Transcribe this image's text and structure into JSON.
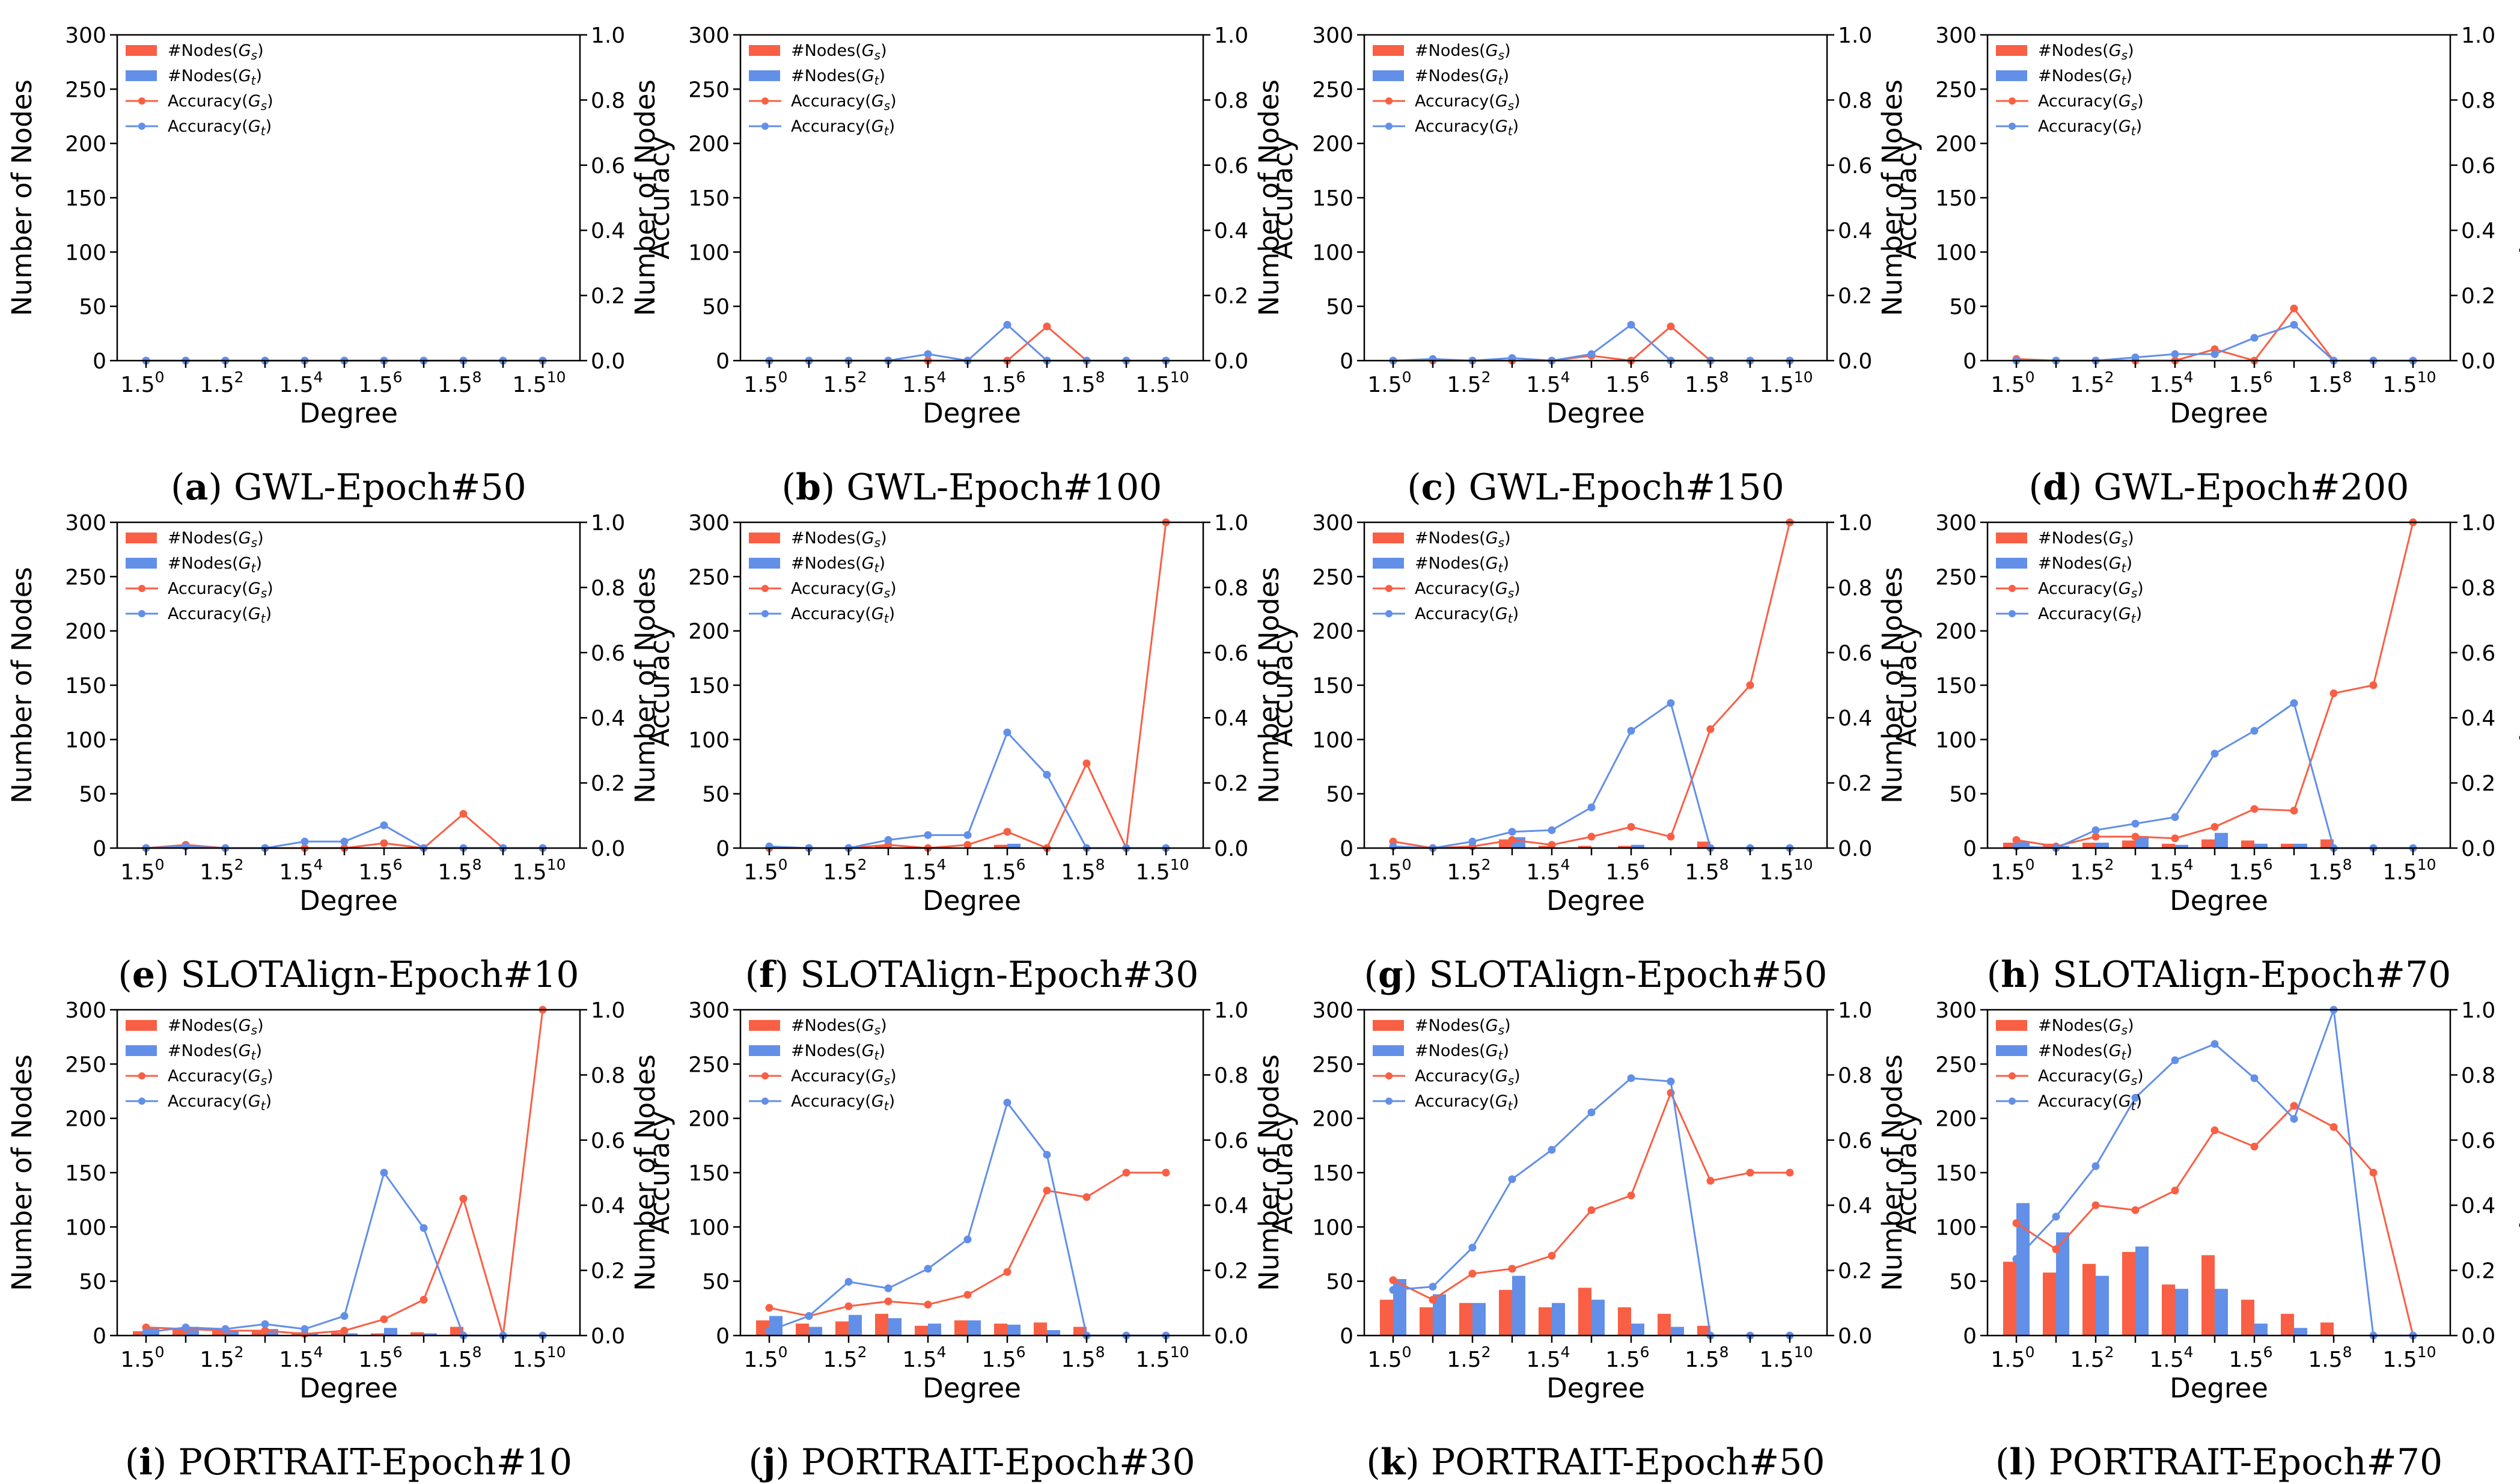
{
  "colors": {
    "source": "#f95f44",
    "target": "#628fe8",
    "axis": "#000000",
    "background": "#ffffff"
  },
  "common": {
    "x_tick_labels": [
      "1.5",
      "0",
      "1.5",
      "2",
      "1.5",
      "4",
      "1.5",
      "6",
      "1.5",
      "8",
      "1.5",
      "10"
    ],
    "x_tick_base": "1.5",
    "x_tick_exponents": [
      "0",
      "2",
      "4",
      "6",
      "8",
      "10"
    ],
    "left_ticks": [
      "0",
      "50",
      "100",
      "150",
      "200",
      "250",
      "300"
    ],
    "right_ticks": [
      "0.0",
      "0.2",
      "0.4",
      "0.6",
      "0.8",
      "1.0"
    ],
    "legend": [
      {
        "prefix": "#Nodes(",
        "var": "G",
        "sub": "s",
        "suffix": ")"
      },
      {
        "prefix": "#Nodes(",
        "var": "G",
        "sub": "t",
        "suffix": ")"
      },
      {
        "prefix": "Accuracy(",
        "var": "G",
        "sub": "s",
        "suffix": ")"
      },
      {
        "prefix": "Accuracy(",
        "var": "G",
        "sub": "t",
        "suffix": ")"
      }
    ]
  },
  "chart_data": [
    {
      "type": "bar+line",
      "id": "a",
      "caption_label": "a",
      "caption_title": "GWL-Epoch#50",
      "xlabel": "Degree",
      "ylabel_left": "Number of Nodes",
      "ylabel_right": "Accuracy",
      "x_exponents": [
        0,
        1,
        2,
        3,
        4,
        5,
        6,
        7,
        8,
        9,
        10
      ],
      "ylim_left": [
        0,
        300
      ],
      "ylim_right": [
        0,
        1.0
      ],
      "nodes_s": [
        0,
        0,
        0,
        0,
        0,
        0,
        0,
        0,
        0,
        0,
        0
      ],
      "nodes_t": [
        0,
        0,
        0,
        0,
        0,
        0,
        0,
        0,
        0,
        0,
        0
      ],
      "acc_s": [
        0,
        0,
        0,
        0,
        0,
        0,
        0,
        0,
        0,
        0,
        0
      ],
      "acc_t": [
        0,
        0,
        0,
        0,
        0,
        0,
        0,
        0,
        0,
        0,
        0
      ]
    },
    {
      "type": "bar+line",
      "id": "b",
      "caption_label": "b",
      "caption_title": "GWL-Epoch#100",
      "xlabel": "Degree",
      "ylabel_left": "Number of Nodes",
      "ylabel_right": "Accuracy",
      "x_exponents": [
        0,
        1,
        2,
        3,
        4,
        5,
        6,
        7,
        8,
        9,
        10
      ],
      "ylim_left": [
        0,
        300
      ],
      "ylim_right": [
        0,
        1.0
      ],
      "nodes_s": [
        0,
        0,
        0,
        0,
        0,
        0,
        0,
        0,
        0,
        0,
        0
      ],
      "nodes_t": [
        0,
        0,
        0,
        0,
        0,
        0,
        0,
        0,
        0,
        0,
        0
      ],
      "acc_s": [
        0,
        0,
        0,
        0,
        0,
        0,
        0,
        0.105,
        0,
        0,
        0
      ],
      "acc_t": [
        0,
        0,
        0,
        0,
        0.02,
        0,
        0.11,
        0,
        0,
        0,
        0
      ]
    },
    {
      "type": "bar+line",
      "id": "c",
      "caption_label": "c",
      "caption_title": "GWL-Epoch#150",
      "xlabel": "Degree",
      "ylabel_left": "Number of Nodes",
      "ylabel_right": "Accuracy",
      "x_exponents": [
        0,
        1,
        2,
        3,
        4,
        5,
        6,
        7,
        8,
        9,
        10
      ],
      "ylim_left": [
        0,
        300
      ],
      "ylim_right": [
        0,
        1.0
      ],
      "nodes_s": [
        0,
        0,
        0,
        0,
        0,
        0,
        0,
        0,
        0,
        0,
        0
      ],
      "nodes_t": [
        0,
        0,
        0,
        0,
        0,
        0,
        0,
        0,
        0,
        0,
        0
      ],
      "acc_s": [
        0,
        0,
        0,
        0,
        0,
        0.015,
        0,
        0.105,
        0,
        0,
        0
      ],
      "acc_t": [
        0,
        0.005,
        0,
        0.008,
        0,
        0.02,
        0.11,
        0,
        0,
        0,
        0
      ]
    },
    {
      "type": "bar+line",
      "id": "d",
      "caption_label": "d",
      "caption_title": "GWL-Epoch#200",
      "xlabel": "Degree",
      "ylabel_left": "Number of Nodes",
      "ylabel_right": "Accuracy",
      "x_exponents": [
        0,
        1,
        2,
        3,
        4,
        5,
        6,
        7,
        8,
        9,
        10
      ],
      "ylim_left": [
        0,
        300
      ],
      "ylim_right": [
        0,
        1.0
      ],
      "nodes_s": [
        0,
        0,
        0,
        0,
        0,
        0,
        0,
        0,
        0,
        0,
        0
      ],
      "nodes_t": [
        0,
        0,
        0,
        0,
        0,
        0,
        0,
        0,
        0,
        0,
        0
      ],
      "acc_s": [
        0.005,
        0,
        0,
        0,
        0,
        0.035,
        0,
        0.16,
        0,
        0,
        0
      ],
      "acc_t": [
        0,
        0,
        0,
        0.01,
        0.02,
        0.02,
        0.07,
        0.11,
        0,
        0,
        0
      ]
    },
    {
      "type": "bar+line",
      "id": "e",
      "caption_label": "e",
      "caption_title": "SLOTAlign-Epoch#10",
      "xlabel": "Degree",
      "ylabel_left": "Number of Nodes",
      "ylabel_right": "Accuracy",
      "x_exponents": [
        0,
        1,
        2,
        3,
        4,
        5,
        6,
        7,
        8,
        9,
        10
      ],
      "ylim_left": [
        0,
        300
      ],
      "ylim_right": [
        0,
        1.0
      ],
      "nodes_s": [
        0,
        1,
        0,
        0,
        0,
        0,
        0,
        0,
        0,
        0,
        0
      ],
      "nodes_t": [
        0,
        0,
        0,
        0,
        0,
        0,
        0,
        0,
        0,
        0,
        0
      ],
      "acc_s": [
        0,
        0.01,
        0,
        0,
        0,
        0,
        0.015,
        0,
        0.105,
        0,
        0
      ],
      "acc_t": [
        0,
        0.005,
        0,
        0,
        0.02,
        0.02,
        0.07,
        0,
        0,
        0,
        0
      ]
    },
    {
      "type": "bar+line",
      "id": "f",
      "caption_label": "f",
      "caption_title": "SLOTAlign-Epoch#30",
      "xlabel": "Degree",
      "ylabel_left": "Number of Nodes",
      "ylabel_right": "Accuracy",
      "x_exponents": [
        0,
        1,
        2,
        3,
        4,
        5,
        6,
        7,
        8,
        9,
        10
      ],
      "ylim_left": [
        0,
        300
      ],
      "ylim_right": [
        0,
        1.0
      ],
      "nodes_s": [
        0,
        0,
        0,
        3,
        0,
        0,
        3,
        0,
        0,
        0,
        0
      ],
      "nodes_t": [
        0,
        0,
        0,
        0,
        0,
        0,
        4,
        0,
        0,
        0,
        0
      ],
      "acc_s": [
        0,
        0,
        0,
        0.01,
        0,
        0.01,
        0.05,
        0,
        0.26,
        0,
        1.0
      ],
      "acc_t": [
        0.005,
        0,
        0,
        0.025,
        0.04,
        0.04,
        0.355,
        0.225,
        0,
        0,
        0
      ]
    },
    {
      "type": "bar+line",
      "id": "g",
      "caption_label": "g",
      "caption_title": "SLOTAlign-Epoch#50",
      "xlabel": "Degree",
      "ylabel_left": "Number of Nodes",
      "ylabel_right": "Accuracy",
      "x_exponents": [
        0,
        1,
        2,
        3,
        4,
        5,
        6,
        7,
        8,
        9,
        10
      ],
      "ylim_left": [
        0,
        300
      ],
      "ylim_right": [
        0,
        1.0
      ],
      "nodes_s": [
        0,
        0,
        0,
        8,
        2,
        2,
        2,
        0,
        6,
        0,
        0
      ],
      "nodes_t": [
        0,
        0,
        0,
        10,
        0,
        0,
        3,
        0,
        0,
        0,
        0
      ],
      "acc_s": [
        0.02,
        0,
        0.005,
        0.025,
        0.01,
        0.035,
        0.065,
        0.035,
        0.365,
        0.5,
        1.0
      ],
      "acc_t": [
        0.005,
        0,
        0.02,
        0.05,
        0.055,
        0.125,
        0.36,
        0.445,
        0,
        0,
        0
      ]
    },
    {
      "type": "bar+line",
      "id": "h",
      "caption_label": "h",
      "caption_title": "SLOTAlign-Epoch#70",
      "xlabel": "Degree",
      "ylabel_left": "Number of Nodes",
      "ylabel_right": "Accuracy",
      "x_exponents": [
        0,
        1,
        2,
        3,
        4,
        5,
        6,
        7,
        8,
        9,
        10
      ],
      "ylim_left": [
        0,
        300
      ],
      "ylim_right": [
        0,
        1.0
      ],
      "nodes_s": [
        5,
        4,
        5,
        7,
        4,
        8,
        7,
        4,
        8,
        0,
        0
      ],
      "nodes_t": [
        6,
        2,
        5,
        11,
        3,
        14,
        4,
        4,
        0,
        0,
        0
      ],
      "acc_s": [
        0.025,
        0.005,
        0.035,
        0.035,
        0.03,
        0.065,
        0.12,
        0.115,
        0.475,
        0.5,
        1.0
      ],
      "acc_t": [
        0.005,
        0,
        0.055,
        0.075,
        0.095,
        0.29,
        0.36,
        0.445,
        0,
        0,
        0
      ]
    },
    {
      "type": "bar+line",
      "id": "i",
      "caption_label": "i",
      "caption_title": "PORTRAIT-Epoch#10",
      "xlabel": "Degree",
      "ylabel_left": "Number of Nodes",
      "ylabel_right": "Accuracy",
      "x_exponents": [
        0,
        1,
        2,
        3,
        4,
        5,
        6,
        7,
        8,
        9,
        10
      ],
      "ylim_left": [
        0,
        300
      ],
      "ylim_right": [
        0,
        1.0
      ],
      "nodes_s": [
        4,
        6,
        5,
        4,
        3,
        3,
        2,
        3,
        8,
        0,
        0
      ],
      "nodes_t": [
        7,
        8,
        5,
        6,
        2,
        2,
        7,
        2,
        0,
        0,
        0
      ],
      "acc_s": [
        0.025,
        0.02,
        0.015,
        0.015,
        0.005,
        0.015,
        0.05,
        0.11,
        0.42,
        0,
        1.0
      ],
      "acc_t": [
        0.01,
        0.025,
        0.02,
        0.035,
        0.02,
        0.06,
        0.5,
        0.33,
        0,
        0,
        0
      ]
    },
    {
      "type": "bar+line",
      "id": "j",
      "caption_label": "j",
      "caption_title": "PORTRAIT-Epoch#30",
      "xlabel": "Degree",
      "ylabel_left": "Number of Nodes",
      "ylabel_right": "Accuracy",
      "x_exponents": [
        0,
        1,
        2,
        3,
        4,
        5,
        6,
        7,
        8,
        9,
        10
      ],
      "ylim_left": [
        0,
        300
      ],
      "ylim_right": [
        0,
        1.0
      ],
      "nodes_s": [
        14,
        11,
        13,
        20,
        9,
        14,
        11,
        12,
        8,
        0,
        0
      ],
      "nodes_t": [
        18,
        8,
        19,
        16,
        11,
        14,
        10,
        5,
        0,
        0,
        0
      ],
      "acc_s": [
        0.085,
        0.06,
        0.09,
        0.105,
        0.095,
        0.125,
        0.195,
        0.445,
        0.425,
        0.5,
        0.5
      ],
      "acc_t": [
        0.015,
        0.06,
        0.165,
        0.145,
        0.205,
        0.295,
        0.715,
        0.555,
        0,
        0,
        0
      ]
    },
    {
      "type": "bar+line",
      "id": "k",
      "caption_label": "k",
      "caption_title": "PORTRAIT-Epoch#50",
      "xlabel": "Degree",
      "ylabel_left": "Number of Nodes",
      "ylabel_right": "Accuracy",
      "x_exponents": [
        0,
        1,
        2,
        3,
        4,
        5,
        6,
        7,
        8,
        9,
        10
      ],
      "ylim_left": [
        0,
        300
      ],
      "ylim_right": [
        0,
        1.0
      ],
      "nodes_s": [
        33,
        26,
        30,
        42,
        26,
        44,
        26,
        20,
        9,
        0,
        0
      ],
      "nodes_t": [
        52,
        38,
        30,
        55,
        30,
        33,
        11,
        8,
        0,
        0,
        0
      ],
      "acc_s": [
        0.17,
        0.11,
        0.19,
        0.205,
        0.245,
        0.385,
        0.43,
        0.745,
        0.475,
        0.5,
        0.5
      ],
      "acc_t": [
        0.14,
        0.15,
        0.27,
        0.48,
        0.57,
        0.685,
        0.79,
        0.78,
        0,
        0,
        0
      ]
    },
    {
      "type": "bar+line",
      "id": "l",
      "caption_label": "l",
      "caption_title": "PORTRAIT-Epoch#70",
      "xlabel": "Degree",
      "ylabel_left": "Number of Nodes",
      "ylabel_right": "Accuracy",
      "x_exponents": [
        0,
        1,
        2,
        3,
        4,
        5,
        6,
        7,
        8,
        9,
        10
      ],
      "ylim_left": [
        0,
        300
      ],
      "ylim_right": [
        0,
        1.0
      ],
      "nodes_s": [
        68,
        58,
        66,
        77,
        47,
        74,
        33,
        20,
        12,
        0,
        0
      ],
      "nodes_t": [
        122,
        95,
        55,
        82,
        43,
        43,
        11,
        7,
        0,
        0,
        0
      ],
      "acc_s": [
        0.345,
        0.265,
        0.4,
        0.385,
        0.445,
        0.63,
        0.58,
        0.705,
        0.64,
        0.5,
        0
      ],
      "acc_t": [
        0.235,
        0.365,
        0.52,
        0.73,
        0.845,
        0.895,
        0.79,
        0.665,
        1.0,
        0,
        0
      ]
    }
  ]
}
